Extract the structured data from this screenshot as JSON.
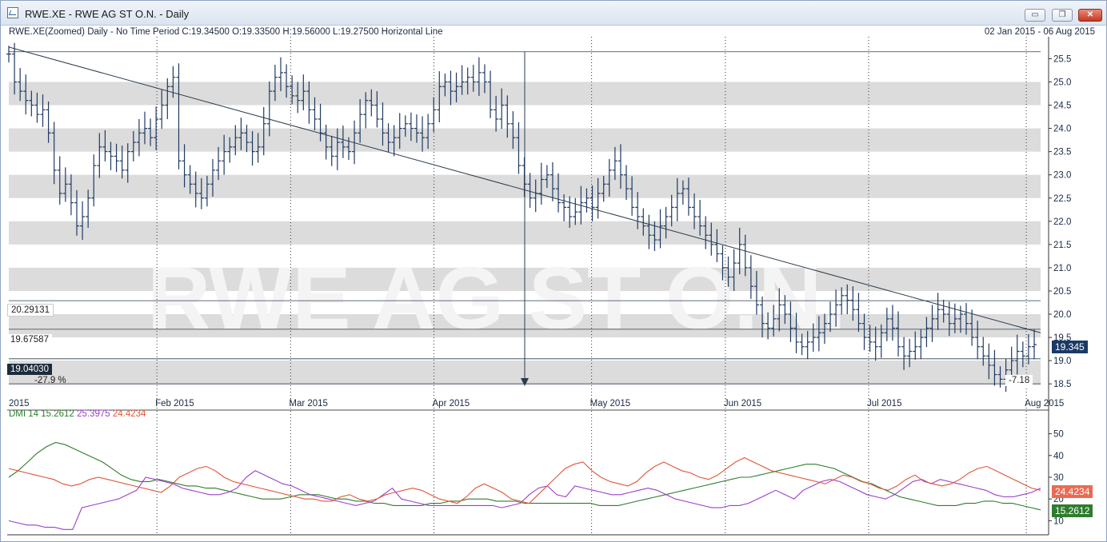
{
  "window": {
    "title": "RWE.XE - RWE AG ST O.N. - Daily",
    "buttons": {
      "minimize": "▭",
      "restore": "❐",
      "close": "✕"
    }
  },
  "price_panel": {
    "header": "RWE.XE(Zoomed) Daily -   No Time Period   C:19.34500 O:19.33500 H:19.56000 L:19.27500 Horizontal Line",
    "date_range": "02 Jan 2015   -  06 Aug 2015",
    "last_price": "19.345",
    "level_labels": [
      "20.29131",
      "19.67587",
      "19.04030"
    ],
    "annotations": {
      "pct": "-27.9 %",
      "points": "-7.18"
    },
    "watermark": "RWE AG ST O.N."
  },
  "dmi_panel": {
    "label_prefix": "DMI 14",
    "values": [
      "15.2612",
      "25.3975",
      "24.4234"
    ],
    "badges": [
      "24.4234",
      "15.2612"
    ]
  },
  "colors": {
    "bars": "#1f3a63",
    "adx": "#2e7d2e",
    "pdi": "#9b3fc8",
    "mdi": "#e0553a",
    "band": "#dcdcdc"
  },
  "chart_data": {
    "type": "ohlc",
    "x_range": [
      "2015-01-02",
      "2015-08-06"
    ],
    "x_ticks": [
      "2015",
      "Feb 2015",
      "Mar 2015",
      "Apr 2015",
      "May 2015",
      "Jun 2015",
      "Jul 2015",
      "Aug 2015"
    ],
    "y_range": [
      18.4,
      25.8
    ],
    "y_ticks": [
      18.5,
      19.0,
      19.5,
      20.0,
      20.5,
      21.0,
      21.5,
      22.0,
      22.5,
      23.0,
      23.5,
      24.0,
      24.5,
      25.0,
      25.5
    ],
    "y_tick_labels": [
      "18.5",
      "19.0",
      "19.5",
      "20.0",
      "20.5",
      "21.0",
      "21.5",
      "22.0",
      "22.5",
      "23.0",
      "23.5",
      "24.0",
      "24.5",
      "25.0",
      "25.5"
    ],
    "trendline": {
      "from": [
        "2015-01-02",
        25.75
      ],
      "to": [
        "2015-08-06",
        19.6
      ]
    },
    "horizontal_levels": [
      25.65,
      20.29131,
      19.67587,
      19.0403,
      18.5
    ],
    "vertical_marker": "2015-04-20",
    "closes": [
      25.6,
      25.0,
      24.8,
      24.6,
      24.5,
      24.3,
      24.4,
      23.9,
      23.1,
      22.6,
      22.8,
      22.4,
      21.9,
      22.1,
      22.5,
      23.2,
      23.6,
      23.5,
      23.4,
      23.3,
      23.1,
      23.5,
      23.7,
      23.9,
      24.0,
      23.8,
      24.2,
      24.5,
      24.9,
      25.1,
      23.3,
      23.0,
      22.8,
      22.6,
      22.5,
      22.8,
      23.1,
      23.3,
      23.5,
      23.6,
      23.8,
      23.9,
      23.7,
      23.5,
      23.6,
      24.1,
      24.8,
      25.1,
      25.2,
      24.9,
      24.7,
      24.6,
      24.8,
      24.4,
      24.2,
      23.9,
      23.6,
      23.4,
      23.7,
      23.6,
      23.5,
      23.9,
      24.3,
      24.6,
      24.5,
      24.2,
      23.9,
      23.7,
      23.8,
      24.0,
      24.1,
      24.0,
      23.9,
      23.8,
      24.1,
      24.4,
      24.9,
      25.0,
      24.8,
      24.9,
      25.0,
      25.1,
      25.0,
      25.2,
      25.0,
      24.4,
      24.2,
      24.5,
      24.1,
      23.8,
      23.2,
      22.8,
      22.5,
      22.6,
      22.9,
      23.0,
      22.7,
      22.4,
      22.3,
      22.1,
      22.2,
      22.4,
      22.5,
      22.3,
      22.6,
      22.8,
      23.1,
      23.3,
      23.0,
      22.7,
      22.3,
      22.1,
      21.9,
      21.7,
      21.6,
      21.9,
      22.1,
      22.3,
      22.6,
      22.7,
      22.3,
      22.1,
      21.9,
      21.7,
      21.5,
      21.3,
      21.0,
      20.8,
      21.1,
      21.5,
      21.0,
      20.6,
      20.2,
      19.8,
      19.7,
      19.9,
      20.2,
      20.0,
      19.7,
      19.4,
      19.3,
      19.4,
      19.5,
      19.6,
      19.8,
      20.0,
      20.2,
      20.4,
      20.3,
      20.1,
      19.8,
      19.5,
      19.4,
      19.3,
      19.6,
      19.9,
      19.7,
      19.3,
      19.1,
      19.2,
      19.3,
      19.5,
      19.7,
      19.9,
      20.1,
      20.0,
      19.8,
      19.9,
      20.0,
      19.8,
      19.5,
      19.3,
      19.1,
      18.9,
      18.7,
      18.6,
      18.8,
      19.0,
      19.2,
      19.1,
      19.3,
      19.345
    ],
    "dmi": {
      "y_range": [
        5,
        55
      ],
      "y_ticks": [
        10,
        20,
        30,
        40,
        50
      ],
      "series": [
        {
          "name": "",
          "key": "adx",
          "values": [
            30,
            33,
            37,
            41,
            44,
            46,
            45,
            43,
            41,
            39,
            37,
            34,
            31,
            29,
            28,
            28,
            29,
            28,
            27,
            26,
            26,
            25,
            25,
            24,
            23,
            22,
            21,
            20,
            20,
            20,
            21,
            22,
            22,
            22,
            21,
            20,
            20,
            19,
            19,
            18,
            18,
            17,
            17,
            17,
            17,
            18,
            18,
            19,
            19,
            20,
            20,
            20,
            19,
            19,
            19,
            18,
            18,
            18,
            18,
            18,
            18,
            18,
            18,
            17,
            17,
            17,
            18,
            19,
            20,
            21,
            22,
            23,
            24,
            25,
            26,
            27,
            28,
            29,
            30,
            30,
            31,
            32,
            33,
            34,
            35,
            36,
            36,
            35,
            34,
            32,
            30,
            28,
            27,
            25,
            23,
            21,
            20,
            19,
            18,
            17,
            17,
            17,
            18,
            18,
            19,
            19,
            18,
            18,
            17,
            16,
            15
          ]
        },
        {
          "name": "",
          "key": "pdi",
          "values": [
            10,
            9,
            8,
            8,
            7,
            7,
            6,
            6,
            16,
            17,
            18,
            19,
            20,
            22,
            24,
            30,
            29,
            28,
            27,
            25,
            24,
            23,
            22,
            22,
            23,
            25,
            30,
            33,
            31,
            29,
            27,
            26,
            24,
            22,
            21,
            20,
            19,
            18,
            17,
            18,
            19,
            22,
            25,
            20,
            19,
            18,
            17,
            17,
            17,
            17,
            17,
            17,
            17,
            17,
            16,
            17,
            18,
            22,
            25,
            26,
            22,
            21,
            26,
            25,
            24,
            23,
            22,
            22,
            23,
            24,
            25,
            24,
            22,
            20,
            19,
            18,
            17,
            16,
            16,
            17,
            17,
            18,
            20,
            22,
            24,
            22,
            20,
            24,
            26,
            28,
            29,
            28,
            26,
            24,
            22,
            21,
            20,
            22,
            25,
            28,
            29,
            27,
            29,
            28,
            27,
            26,
            25,
            24,
            22,
            21,
            21,
            22,
            23,
            25
          ]
        },
        {
          "name": "",
          "key": "mdi",
          "values": [
            34,
            33,
            32,
            31,
            30,
            29,
            27,
            26,
            27,
            29,
            30,
            29,
            28,
            27,
            26,
            25,
            24,
            23,
            26,
            30,
            32,
            34,
            35,
            33,
            30,
            28,
            27,
            26,
            25,
            24,
            23,
            22,
            21,
            20,
            20,
            19,
            19,
            21,
            22,
            20,
            19,
            20,
            22,
            23,
            24,
            25,
            24,
            22,
            20,
            19,
            18,
            21,
            25,
            27,
            25,
            23,
            20,
            19,
            18,
            22,
            26,
            30,
            34,
            36,
            37,
            33,
            30,
            28,
            27,
            26,
            28,
            32,
            35,
            37,
            35,
            33,
            32,
            30,
            29,
            31,
            34,
            37,
            39,
            37,
            35,
            33,
            32,
            31,
            30,
            29,
            28,
            27,
            29,
            31,
            30,
            28,
            27,
            25,
            24,
            26,
            29,
            31,
            28,
            27,
            26,
            27,
            29,
            32,
            34,
            35,
            33,
            31,
            29,
            27,
            25,
            24
          ]
        }
      ]
    }
  }
}
